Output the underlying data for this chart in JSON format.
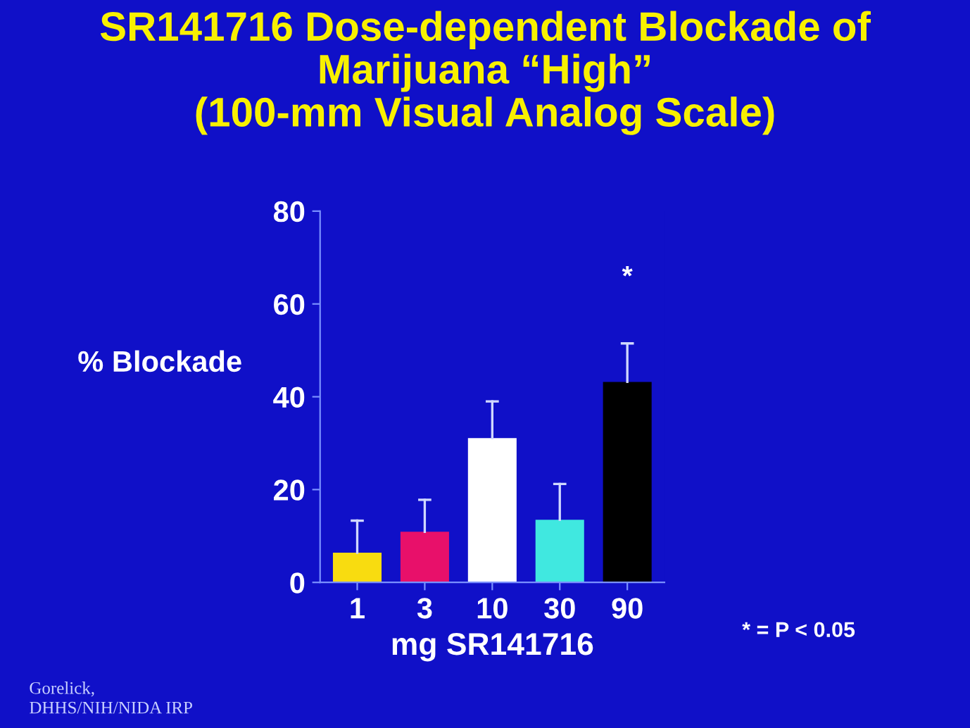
{
  "chart_data": {
    "type": "bar",
    "title": "SR141716 Dose-dependent Blockade of\nMarijuana “High”\n(100-mm Visual Analog Scale)",
    "xlabel": "mg SR141716",
    "ylabel": "% Blockade",
    "categories": [
      "1",
      "3",
      "10",
      "30",
      "90"
    ],
    "values": [
      6.4,
      10.9,
      31.1,
      13.5,
      43.2
    ],
    "colors": [
      "#f8dc10",
      "#e8106a",
      "#ffffff",
      "#40e8e0",
      "#000000"
    ],
    "errors": [
      [
        6.4,
        13.3
      ],
      [
        10.9,
        17.8
      ],
      [
        31.1,
        39.0
      ],
      [
        13.5,
        21.2
      ],
      [
        43.2,
        51.5
      ]
    ],
    "ylim": [
      0,
      80
    ],
    "yticks": [
      0,
      20,
      40,
      60,
      80
    ],
    "grid": false,
    "legend": false,
    "annotations": [
      "*",
      "* = P < 0.05",
      "Gorelick,\nDHHS/NIH/NIDA IRP"
    ]
  }
}
